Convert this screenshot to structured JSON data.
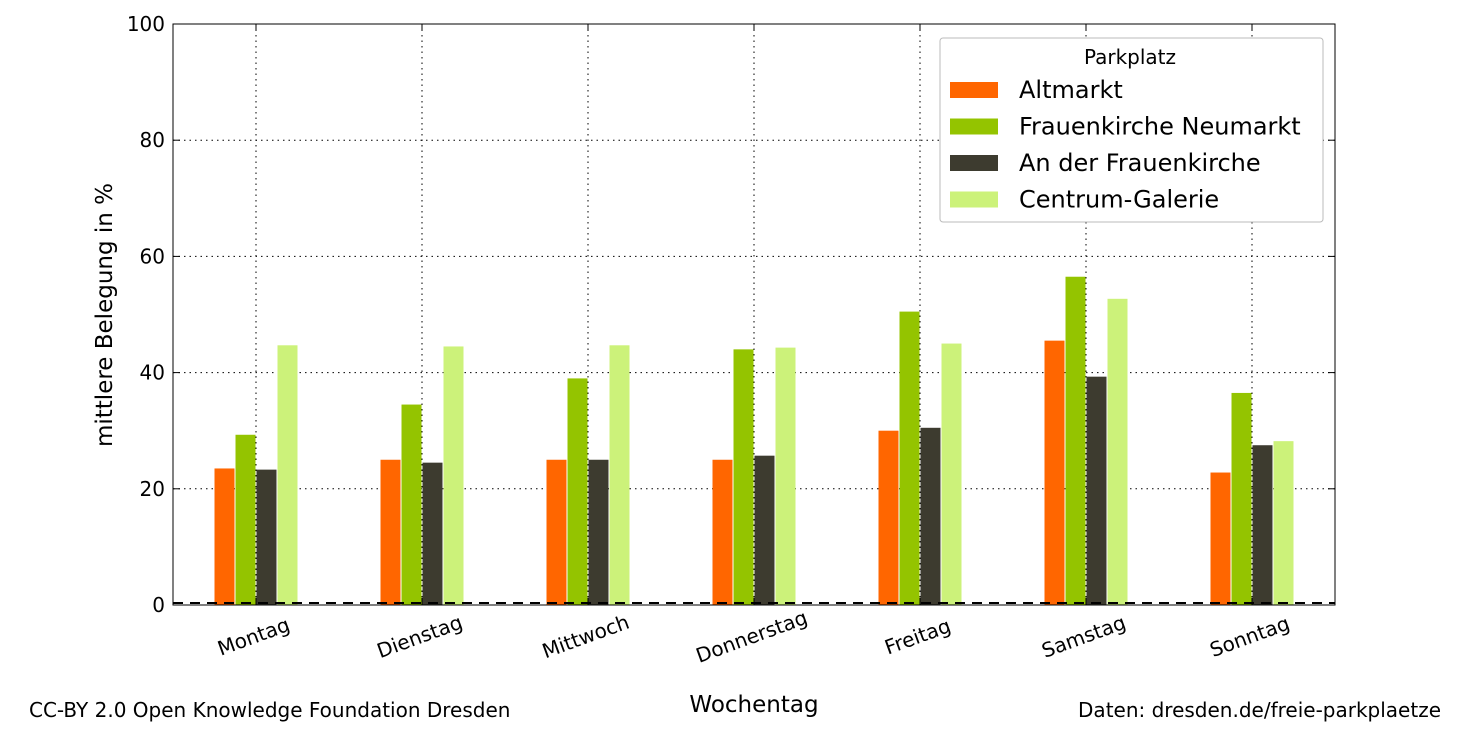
{
  "chart_data": {
    "type": "bar",
    "title": "",
    "xlabel": "Wochentag",
    "ylabel": "mittlere Belegung in %",
    "ylim": [
      0,
      100
    ],
    "yticks": [
      0,
      20,
      40,
      60,
      80,
      100
    ],
    "grid": true,
    "categories": [
      "Montag",
      "Dienstag",
      "Mittwoch",
      "Donnerstag",
      "Freitag",
      "Samstag",
      "Sonntag"
    ],
    "legend": {
      "title": "Parkplatz",
      "placement": "top-right"
    },
    "series": [
      {
        "name": "Altmarkt",
        "color": "#ff6600",
        "values": [
          23.5,
          25,
          25,
          25,
          30,
          45.5,
          22.8
        ]
      },
      {
        "name": "Frauenkirche Neumarkt",
        "color": "#94c400",
        "values": [
          29.3,
          34.5,
          39,
          44,
          50.5,
          56.5,
          36.5
        ]
      },
      {
        "name": "An der Frauenkirche",
        "color": "#3d3b2f",
        "values": [
          23.3,
          24.5,
          25,
          25.7,
          30.5,
          39.3,
          27.5
        ]
      },
      {
        "name": "Centrum-Galerie",
        "color": "#ccf27a",
        "values": [
          44.7,
          44.5,
          44.7,
          44.3,
          45,
          52.7,
          28.2
        ]
      }
    ],
    "baseline": 0
  },
  "footer": {
    "left": "CC-BY 2.0 Open Knowledge Foundation Dresden",
    "right": "Daten: dresden.de/freie-parkplaetze"
  }
}
